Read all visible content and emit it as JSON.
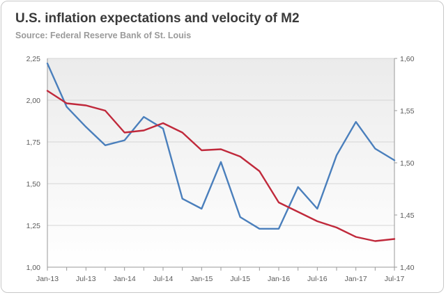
{
  "title": "U.S. inflation expectations and velocity of M2",
  "source": "Source: Federal Reserve Bank of St. Louis",
  "colors": {
    "series_blue": "#4a7fbc",
    "series_red": "#c0293b"
  },
  "chart_data": {
    "type": "line",
    "title": "U.S. inflation expectations and velocity of M2",
    "subtitle": "Source: Federal Reserve Bank of St. Louis",
    "x": [
      "Jan-13",
      "Apr-13",
      "Jul-13",
      "Oct-13",
      "Jan-14",
      "Apr-14",
      "Jul-14",
      "Oct-14",
      "Jan-15",
      "Apr-15",
      "Jul-15",
      "Oct-15",
      "Jan-16",
      "Apr-16",
      "Jul-16",
      "Oct-16",
      "Jan-17",
      "Apr-17",
      "Jul-17"
    ],
    "x_tick_labels": [
      "Jan-13",
      "Jul-13",
      "Jan-14",
      "Jul-14",
      "Jan-15",
      "Jul-15",
      "Jan-16",
      "Jul-16",
      "Jan-17",
      "Jul-17"
    ],
    "left_axis": {
      "ylim": [
        1.0,
        2.25
      ],
      "ticks": [
        "1,00",
        "1,25",
        "1,50",
        "1,75",
        "2,00",
        "2,25"
      ],
      "tick_values": [
        1.0,
        1.25,
        1.5,
        1.75,
        2.0,
        2.25
      ]
    },
    "right_axis": {
      "ylim": [
        1.4,
        1.6
      ],
      "ticks": [
        "1,40",
        "1,45",
        "1,50",
        "1,55",
        "1,60"
      ],
      "tick_values": [
        1.4,
        1.45,
        1.5,
        1.55,
        1.6
      ]
    },
    "series": [
      {
        "name": "Inflation expectations",
        "axis": "left",
        "color": "#4a7fbc",
        "values": [
          2.22,
          1.96,
          1.84,
          1.73,
          1.76,
          1.9,
          1.83,
          1.41,
          1.35,
          1.63,
          1.3,
          1.23,
          1.23,
          1.48,
          1.35,
          1.67,
          1.87,
          1.71,
          1.64
        ]
      },
      {
        "name": "Velocity of M2",
        "axis": "right",
        "color": "#c0293b",
        "values": [
          1.569,
          1.557,
          1.555,
          1.55,
          1.529,
          1.531,
          1.538,
          1.529,
          1.512,
          1.513,
          1.506,
          1.492,
          1.462,
          1.453,
          1.444,
          1.438,
          1.429,
          1.425,
          1.427
        ]
      }
    ],
    "grid": true
  }
}
